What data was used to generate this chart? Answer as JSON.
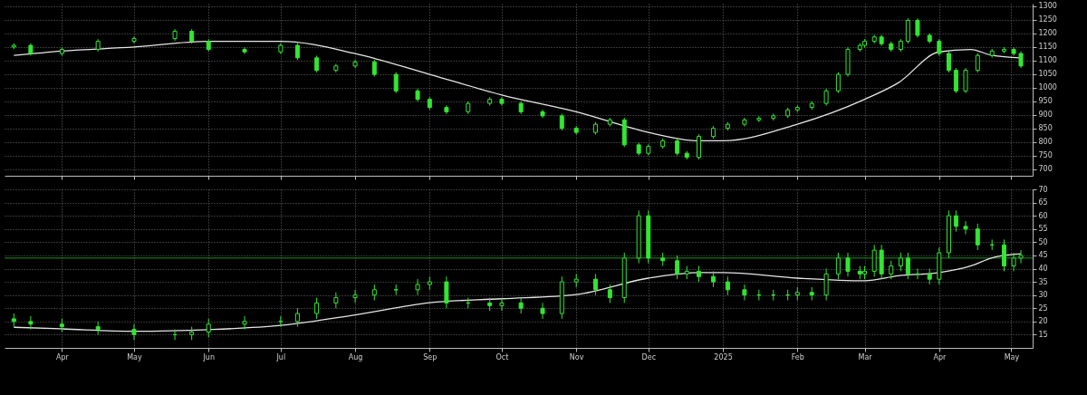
{
  "chart_data": [
    {
      "type": "candlestick",
      "xlim": [
        "2024-03-10",
        "2025-05-08"
      ],
      "ylim": [
        675,
        1310
      ],
      "yticks": [
        700,
        750,
        800,
        850,
        900,
        950,
        1000,
        1050,
        1100,
        1150,
        1200,
        1250,
        1300
      ],
      "xticks": [
        {
          "value": "2024-04-01",
          "label": null
        },
        {
          "value": "2024-05-01",
          "label": null
        },
        {
          "value": "2024-06-01",
          "label": null
        },
        {
          "value": "2024-07-01",
          "label": null
        },
        {
          "value": "2024-08-01",
          "label": null
        },
        {
          "value": "2024-09-01",
          "label": null
        },
        {
          "value": "2024-10-01",
          "label": null
        },
        {
          "value": "2024-11-01",
          "label": null
        },
        {
          "value": "2024-12-01",
          "label": null
        },
        {
          "value": "2025-01-01",
          "label": null
        },
        {
          "value": "2025-02-01",
          "label": null
        },
        {
          "value": "2025-03-01",
          "label": null
        },
        {
          "value": "2025-04-01",
          "label": null
        },
        {
          "value": "2025-05-01",
          "label": null
        }
      ],
      "grid": true,
      "tick_labels": "y",
      "series": [
        {
          "type": "line",
          "color": "#e6e6e6",
          "x": [
            "2024-03-12",
            "2024-04-01",
            "2024-05-01",
            "2024-06-01",
            "2024-07-01",
            "2024-08-01",
            "2024-09-01",
            "2024-10-01",
            "2024-11-01",
            "2024-12-01",
            "2024-12-22",
            "2025-01-01",
            "2025-02-01",
            "2025-03-01",
            "2025-03-15",
            "2025-04-01",
            "2025-04-14",
            "2025-04-23",
            "2025-05-05"
          ],
          "values": [
            1119,
            1135,
            1150,
            1171,
            1171,
            1126,
            1049,
            973,
            911,
            835,
            804,
            804,
            865,
            957,
            1018,
            1132,
            1141,
            1119,
            1110
          ]
        },
        {
          "type": "candlestick",
          "color": "#33e633",
          "x": [
            "2024-03-12",
            "2024-03-19",
            "2024-04-01",
            "2024-04-16",
            "2024-05-01",
            "2024-05-18",
            "2024-05-25",
            "2024-06-01",
            "2024-06-16",
            "2024-07-01",
            "2024-07-08",
            "2024-07-16",
            "2024-07-24",
            "2024-08-01",
            "2024-08-09",
            "2024-08-18",
            "2024-08-27",
            "2024-09-01",
            "2024-09-08",
            "2024-09-17",
            "2024-09-26",
            "2024-10-01",
            "2024-10-09",
            "2024-10-18",
            "2024-10-26",
            "2024-11-01",
            "2024-11-09",
            "2024-11-15",
            "2024-11-21",
            "2024-11-27",
            "2024-12-01",
            "2024-12-07",
            "2024-12-13",
            "2024-12-17",
            "2024-12-22",
            "2024-12-28",
            "2025-01-03",
            "2025-01-10",
            "2025-01-16",
            "2025-01-22",
            "2025-01-28",
            "2025-02-01",
            "2025-02-07",
            "2025-02-13",
            "2025-02-18",
            "2025-02-22",
            "2025-02-27",
            "2025-03-01",
            "2025-03-05",
            "2025-03-08",
            "2025-03-12",
            "2025-03-16",
            "2025-03-19",
            "2025-03-23",
            "2025-03-28",
            "2025-04-01",
            "2025-04-05",
            "2025-04-08",
            "2025-04-12",
            "2025-04-17",
            "2025-04-23",
            "2025-04-28",
            "2025-05-02",
            "2025-05-05"
          ],
          "ohlc": [
            [
              1150,
              1164,
              1142,
              1156
            ],
            [
              1156,
              1164,
              1118,
              1126
            ],
            [
              1126,
              1149,
              1118,
              1141
            ],
            [
              1141,
              1179,
              1133,
              1171
            ],
            [
              1171,
              1189,
              1163,
              1181
            ],
            [
              1181,
              1216,
              1173,
              1208
            ],
            [
              1208,
              1216,
              1163,
              1171
            ],
            [
              1171,
              1179,
              1133,
              1141
            ],
            [
              1141,
              1149,
              1124,
              1132
            ],
            [
              1132,
              1164,
              1124,
              1156
            ],
            [
              1156,
              1164,
              1102,
              1110
            ],
            [
              1110,
              1118,
              1056,
              1064
            ],
            [
              1064,
              1088,
              1056,
              1080
            ],
            [
              1080,
              1103,
              1072,
              1095
            ],
            [
              1095,
              1103,
              1041,
              1049
            ],
            [
              1049,
              1057,
              980,
              988
            ],
            [
              988,
              996,
              949,
              957
            ],
            [
              957,
              965,
              919,
              927
            ],
            [
              927,
              935,
              903,
              911
            ],
            [
              911,
              950,
              903,
              942
            ],
            [
              942,
              965,
              934,
              957
            ],
            [
              957,
              965,
              934,
              942
            ],
            [
              942,
              950,
              903,
              911
            ],
            [
              911,
              919,
              888,
              896
            ],
            [
              896,
              904,
              842,
              850
            ],
            [
              850,
              858,
              827,
              835
            ],
            [
              835,
              873,
              827,
              865
            ],
            [
              865,
              889,
              857,
              881
            ],
            [
              881,
              889,
              781,
              789
            ],
            [
              789,
              797,
              750,
              758
            ],
            [
              758,
              791,
              750,
              783
            ],
            [
              783,
              812,
              775,
              804
            ],
            [
              804,
              812,
              750,
              758
            ],
            [
              758,
              766,
              735,
              743
            ],
            [
              743,
              828,
              735,
              820
            ],
            [
              820,
              858,
              812,
              850
            ],
            [
              850,
              873,
              842,
              865
            ],
            [
              865,
              889,
              857,
              881
            ],
            [
              881,
              895,
              873,
              887
            ],
            [
              887,
              904,
              879,
              896
            ],
            [
              896,
              926,
              888,
              918
            ],
            [
              918,
              935,
              910,
              927
            ],
            [
              927,
              950,
              919,
              942
            ],
            [
              942,
              996,
              934,
              988
            ],
            [
              988,
              1057,
              980,
              1049
            ],
            [
              1049,
              1149,
              1041,
              1141
            ],
            [
              1141,
              1164,
              1133,
              1156
            ],
            [
              1156,
              1179,
              1148,
              1171
            ],
            [
              1171,
              1195,
              1163,
              1187
            ],
            [
              1187,
              1195,
              1154,
              1162
            ],
            [
              1162,
              1170,
              1133,
              1141
            ],
            [
              1141,
              1179,
              1133,
              1171
            ],
            [
              1171,
              1256,
              1163,
              1248
            ],
            [
              1248,
              1256,
              1185,
              1193
            ],
            [
              1193,
              1201,
              1163,
              1171
            ],
            [
              1171,
              1179,
              1118,
              1126
            ],
            [
              1126,
              1134,
              1056,
              1064
            ],
            [
              1064,
              1072,
              980,
              988
            ],
            [
              988,
              1072,
              980,
              1064
            ],
            [
              1064,
              1127,
              1056,
              1119
            ],
            [
              1119,
              1143,
              1111,
              1135
            ],
            [
              1135,
              1149,
              1127,
              1141
            ],
            [
              1141,
              1149,
              1118,
              1126
            ],
            [
              1126,
              1134,
              1072,
              1080
            ]
          ]
        }
      ]
    },
    {
      "type": "candlestick",
      "xlim": [
        "2024-03-10",
        "2025-05-08"
      ],
      "ylim": [
        10,
        70
      ],
      "yticks": [
        15,
        20,
        25,
        30,
        35,
        40,
        45,
        50,
        55,
        60,
        65,
        70
      ],
      "xticks": [
        {
          "value": "2024-04-01",
          "label": "Apr"
        },
        {
          "value": "2024-05-01",
          "label": "May"
        },
        {
          "value": "2024-06-01",
          "label": "Jun"
        },
        {
          "value": "2024-07-01",
          "label": "Jul"
        },
        {
          "value": "2024-08-01",
          "label": "Aug"
        },
        {
          "value": "2024-09-01",
          "label": "Sep"
        },
        {
          "value": "2024-10-01",
          "label": "Oct"
        },
        {
          "value": "2024-11-01",
          "label": "Nov"
        },
        {
          "value": "2024-12-01",
          "label": "Dec"
        },
        {
          "value": "2025-01-01",
          "label": "2025"
        },
        {
          "value": "2025-02-01",
          "label": "Feb"
        },
        {
          "value": "2025-03-01",
          "label": "Mar"
        },
        {
          "value": "2025-04-01",
          "label": "Apr"
        },
        {
          "value": "2025-05-01",
          "label": "May"
        }
      ],
      "grid": true,
      "ref_lines": [
        {
          "axis": "y",
          "value": 44,
          "color": "#1f8f1f"
        }
      ],
      "series": [
        {
          "type": "line",
          "color": "#e6e6e6",
          "x": [
            "2024-03-12",
            "2024-04-01",
            "2024-05-01",
            "2024-06-01",
            "2024-07-01",
            "2024-08-01",
            "2024-09-01",
            "2024-10-01",
            "2024-11-01",
            "2024-12-01",
            "2024-12-22",
            "2025-01-01",
            "2025-02-01",
            "2025-03-01",
            "2025-03-15",
            "2025-04-01",
            "2025-04-14",
            "2025-04-23",
            "2025-05-05"
          ],
          "values": [
            17.8,
            17.2,
            16.3,
            16.9,
            18.5,
            22.5,
            27.1,
            28.6,
            30.2,
            36.4,
            38.5,
            38.5,
            36.4,
            35.4,
            37.3,
            38.5,
            41,
            44.1,
            45.6
          ]
        },
        {
          "type": "candlestick",
          "color": "#33e633",
          "x": [
            "2024-03-12",
            "2024-03-19",
            "2024-04-01",
            "2024-04-16",
            "2024-05-01",
            "2024-05-18",
            "2024-05-25",
            "2024-06-01",
            "2024-06-16",
            "2024-07-01",
            "2024-07-08",
            "2024-07-16",
            "2024-07-24",
            "2024-08-01",
            "2024-08-09",
            "2024-08-18",
            "2024-08-27",
            "2024-09-01",
            "2024-09-08",
            "2024-09-17",
            "2024-09-26",
            "2024-10-01",
            "2024-10-09",
            "2024-10-18",
            "2024-10-26",
            "2024-11-01",
            "2024-11-09",
            "2024-11-15",
            "2024-11-21",
            "2024-11-27",
            "2024-12-01",
            "2024-12-07",
            "2024-12-13",
            "2024-12-17",
            "2024-12-22",
            "2024-12-28",
            "2025-01-03",
            "2025-01-10",
            "2025-01-16",
            "2025-01-22",
            "2025-01-28",
            "2025-02-01",
            "2025-02-07",
            "2025-02-13",
            "2025-02-18",
            "2025-02-22",
            "2025-02-27",
            "2025-03-01",
            "2025-03-05",
            "2025-03-08",
            "2025-03-12",
            "2025-03-16",
            "2025-03-19",
            "2025-03-23",
            "2025-03-28",
            "2025-04-01",
            "2025-04-05",
            "2025-04-08",
            "2025-04-12",
            "2025-04-17",
            "2025-04-23",
            "2025-04-28",
            "2025-05-02",
            "2025-05-05"
          ],
          "ohlc": [
            [
              21,
              23,
              18,
              20
            ],
            [
              20,
              22,
              17,
              19
            ],
            [
              19,
              21,
              16,
              18
            ],
            [
              18,
              20,
              15,
              17
            ],
            [
              17,
              19,
              13,
              15
            ],
            [
              15,
              17,
              13,
              15
            ],
            [
              15,
              18,
              13,
              16
            ],
            [
              16,
              21,
              14,
              19
            ],
            [
              19,
              22,
              17,
              20
            ],
            [
              20,
              22,
              18,
              20
            ],
            [
              20,
              25,
              18,
              23
            ],
            [
              23,
              29,
              21,
              27
            ],
            [
              27,
              31,
              25,
              29
            ],
            [
              29,
              32,
              27,
              30
            ],
            [
              30,
              34,
              28,
              32
            ],
            [
              32,
              34,
              30,
              32
            ],
            [
              32,
              36,
              30,
              34
            ],
            [
              34,
              37,
              32,
              35
            ],
            [
              35,
              37,
              25,
              27
            ],
            [
              27,
              29,
              25,
              27
            ],
            [
              27,
              29,
              24,
              26
            ],
            [
              26,
              29,
              24,
              27
            ],
            [
              27,
              29,
              23,
              25
            ],
            [
              25,
              27,
              21,
              23
            ],
            [
              23,
              37,
              21,
              35
            ],
            [
              35,
              38,
              33,
              36
            ],
            [
              36,
              38,
              30,
              32
            ],
            [
              32,
              34,
              27,
              29
            ],
            [
              29,
              46,
              27,
              44
            ],
            [
              44,
              62,
              42,
              60
            ],
            [
              60,
              62,
              42,
              44
            ],
            [
              44,
              46,
              41,
              43
            ],
            [
              43,
              45,
              36,
              38
            ],
            [
              38,
              41,
              36,
              39
            ],
            [
              39,
              41,
              35,
              37
            ],
            [
              37,
              39,
              33,
              35
            ],
            [
              35,
              37,
              30,
              32
            ],
            [
              32,
              34,
              28,
              30
            ],
            [
              30,
              32,
              28,
              30
            ],
            [
              30,
              32,
              28,
              30
            ],
            [
              30,
              32,
              28,
              30
            ],
            [
              30,
              33,
              28,
              31
            ],
            [
              31,
              33,
              28,
              30
            ],
            [
              30,
              40,
              28,
              38
            ],
            [
              38,
              46,
              36,
              44
            ],
            [
              44,
              46,
              37,
              39
            ],
            [
              39,
              41,
              36,
              38
            ],
            [
              38,
              41,
              36,
              39
            ],
            [
              39,
              49,
              37,
              47
            ],
            [
              47,
              49,
              36,
              38
            ],
            [
              38,
              43,
              36,
              41
            ],
            [
              41,
              46,
              39,
              44
            ],
            [
              44,
              46,
              36,
              38
            ],
            [
              38,
              40,
              36,
              38
            ],
            [
              38,
              40,
              34,
              36
            ],
            [
              36,
              48,
              34,
              46
            ],
            [
              46,
              62,
              44,
              60
            ],
            [
              60,
              62,
              54,
              56
            ],
            [
              56,
              58,
              53,
              55
            ],
            [
              55,
              57,
              47,
              49
            ],
            [
              49,
              51,
              47,
              49
            ],
            [
              49,
              51,
              39,
              41
            ],
            [
              41,
              46,
              39,
              44
            ],
            [
              44,
              47,
              42,
              45
            ]
          ]
        }
      ]
    }
  ]
}
